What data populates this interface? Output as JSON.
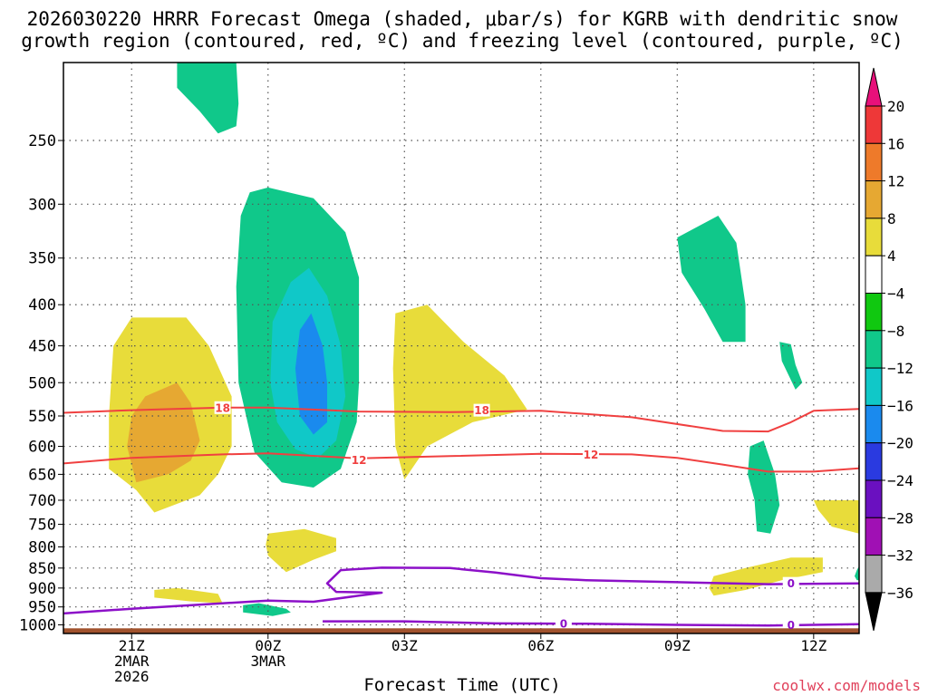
{
  "chart_data": {
    "type": "contour",
    "title_line1": "2026030220 HRRR Forecast Omega (shaded, μbar/s) for KGRB with dendritic snow",
    "title_line2": "growth region (contoured, red, ºC) and freezing level (contoured, purple, ºC)",
    "xlabel": "Forecast Time (UTC)",
    "credit": "coolwx.com/models",
    "x_hours_range": [
      -1.5,
      16.0
    ],
    "x_ticks": [
      {
        "h": 0,
        "lines": [
          "21Z",
          "2MAR",
          "2026"
        ]
      },
      {
        "h": 3,
        "lines": [
          "00Z",
          "3MAR"
        ]
      },
      {
        "h": 6,
        "lines": [
          "03Z"
        ]
      },
      {
        "h": 9,
        "lines": [
          "06Z"
        ]
      },
      {
        "h": 12,
        "lines": [
          "09Z"
        ]
      },
      {
        "h": 15,
        "lines": [
          "12Z"
        ]
      }
    ],
    "y_ticks_mb": [
      250,
      300,
      350,
      400,
      450,
      500,
      550,
      600,
      650,
      700,
      750,
      800,
      850,
      900,
      950,
      1000
    ],
    "y_axis": "log-pressure, 200 mb at top to 1025 mb at bottom",
    "colorbar": {
      "labels": [
        "20",
        "16",
        "12",
        "8",
        "4",
        "−4",
        "−8",
        "−12",
        "−16",
        "−20",
        "−24",
        "−28",
        "−32",
        "−36"
      ],
      "bands": [
        {
          "from": 20,
          "to": 99,
          "color": "#e8107a"
        },
        {
          "from": 16,
          "to": 20,
          "color": "#ee3838"
        },
        {
          "from": 12,
          "to": 16,
          "color": "#ee7a2a"
        },
        {
          "from": 8,
          "to": 12,
          "color": "#e6a832"
        },
        {
          "from": 4,
          "to": 8,
          "color": "#e8dc3a"
        },
        {
          "from": -4,
          "to": 4,
          "color": "#ffffff"
        },
        {
          "from": -8,
          "to": -4,
          "color": "#10c810"
        },
        {
          "from": -12,
          "to": -8,
          "color": "#10c88a"
        },
        {
          "from": -16,
          "to": -12,
          "color": "#10c8c8"
        },
        {
          "from": -20,
          "to": -16,
          "color": "#1a8aee"
        },
        {
          "from": -24,
          "to": -20,
          "color": "#2a3ae0"
        },
        {
          "from": -28,
          "to": -24,
          "color": "#6a10c0"
        },
        {
          "from": -32,
          "to": -28,
          "color": "#a010b4"
        },
        {
          "from": -36,
          "to": -32,
          "color": "#aaaaaa"
        },
        {
          "from": -99,
          "to": -36,
          "color": "#000000"
        }
      ]
    },
    "omega_regions": [
      {
        "name": "lift-upper-0",
        "level": -8,
        "pts": [
          [
            1.0,
            200
          ],
          [
            2.3,
            200
          ],
          [
            2.35,
            225
          ],
          [
            2.3,
            240
          ],
          [
            1.9,
            245
          ],
          [
            1.5,
            230
          ],
          [
            1.0,
            215
          ]
        ]
      },
      {
        "name": "lift-main-outer",
        "level": -8,
        "pts": [
          [
            2.6,
            290
          ],
          [
            3.0,
            286
          ],
          [
            4.0,
            295
          ],
          [
            4.7,
            325
          ],
          [
            5.0,
            370
          ],
          [
            5.0,
            500
          ],
          [
            4.95,
            560
          ],
          [
            4.6,
            640
          ],
          [
            4.0,
            675
          ],
          [
            3.3,
            665
          ],
          [
            2.7,
            610
          ],
          [
            2.35,
            500
          ],
          [
            2.3,
            380
          ],
          [
            2.4,
            310
          ]
        ]
      },
      {
        "name": "lift-main-mid",
        "level": -12,
        "pts": [
          [
            3.9,
            360
          ],
          [
            4.3,
            390
          ],
          [
            4.6,
            450
          ],
          [
            4.7,
            520
          ],
          [
            4.5,
            590
          ],
          [
            4.1,
            620
          ],
          [
            3.6,
            605
          ],
          [
            3.2,
            560
          ],
          [
            3.05,
            500
          ],
          [
            3.1,
            420
          ],
          [
            3.5,
            375
          ]
        ]
      },
      {
        "name": "lift-main-core",
        "level": -16,
        "pts": [
          [
            3.95,
            410
          ],
          [
            4.2,
            450
          ],
          [
            4.3,
            500
          ],
          [
            4.3,
            560
          ],
          [
            4.0,
            580
          ],
          [
            3.7,
            550
          ],
          [
            3.6,
            480
          ],
          [
            3.7,
            430
          ]
        ]
      },
      {
        "name": "lift-0930z",
        "level": -8,
        "pts": [
          [
            12.0,
            330
          ],
          [
            12.9,
            310
          ],
          [
            13.3,
            335
          ],
          [
            13.5,
            400
          ],
          [
            13.5,
            445
          ],
          [
            13.0,
            445
          ],
          [
            12.6,
            405
          ],
          [
            12.1,
            365
          ]
        ]
      },
      {
        "name": "lift-1100z",
        "level": -8,
        "pts": [
          [
            14.25,
            445
          ],
          [
            14.5,
            448
          ],
          [
            14.6,
            475
          ],
          [
            14.75,
            500
          ],
          [
            14.6,
            510
          ],
          [
            14.3,
            470
          ]
        ]
      },
      {
        "name": "lift-1000z",
        "level": -8,
        "pts": [
          [
            13.6,
            600
          ],
          [
            13.9,
            590
          ],
          [
            14.15,
            650
          ],
          [
            14.25,
            710
          ],
          [
            14.05,
            770
          ],
          [
            13.75,
            765
          ],
          [
            13.7,
            700
          ],
          [
            13.55,
            650
          ]
        ]
      },
      {
        "name": "lift-0230z",
        "level": -8,
        "pts": [
          [
            2.45,
            945
          ],
          [
            2.8,
            940
          ],
          [
            3.4,
            955
          ],
          [
            3.5,
            965
          ],
          [
            3.1,
            975
          ],
          [
            2.45,
            965
          ]
        ]
      },
      {
        "name": "lift-edge",
        "level": -8,
        "pts": [
          [
            15.95,
            855
          ],
          [
            16.0,
            845
          ],
          [
            16.0,
            880
          ],
          [
            15.95,
            880
          ],
          [
            15.9,
            870
          ]
        ]
      },
      {
        "name": "sink-left-outer",
        "level": 4,
        "pts": [
          [
            0.0,
            415
          ],
          [
            1.2,
            415
          ],
          [
            1.7,
            450
          ],
          [
            2.2,
            520
          ],
          [
            2.2,
            600
          ],
          [
            1.9,
            650
          ],
          [
            1.5,
            690
          ],
          [
            0.5,
            725
          ],
          [
            0.1,
            680
          ],
          [
            -0.5,
            640
          ],
          [
            -0.5,
            550
          ],
          [
            -0.4,
            450
          ]
        ]
      },
      {
        "name": "sink-left-inner",
        "level": 8,
        "pts": [
          [
            0.3,
            520
          ],
          [
            1.0,
            500
          ],
          [
            1.3,
            530
          ],
          [
            1.5,
            590
          ],
          [
            1.3,
            625
          ],
          [
            0.8,
            650
          ],
          [
            0.1,
            665
          ],
          [
            -0.1,
            600
          ],
          [
            0.0,
            550
          ]
        ]
      },
      {
        "name": "sink-mid",
        "level": 4,
        "pts": [
          [
            5.8,
            410
          ],
          [
            6.5,
            400
          ],
          [
            7.3,
            445
          ],
          [
            8.2,
            490
          ],
          [
            8.7,
            540
          ],
          [
            7.5,
            560
          ],
          [
            6.5,
            600
          ],
          [
            6.0,
            660
          ],
          [
            5.8,
            600
          ],
          [
            5.75,
            480
          ]
        ]
      },
      {
        "name": "sink-0030z",
        "level": 4,
        "pts": [
          [
            3.0,
            770
          ],
          [
            3.8,
            760
          ],
          [
            4.5,
            780
          ],
          [
            4.5,
            810
          ],
          [
            4.0,
            830
          ],
          [
            3.4,
            860
          ],
          [
            3.0,
            820
          ],
          [
            2.95,
            795
          ]
        ]
      },
      {
        "name": "sink-2200z",
        "level": 4,
        "pts": [
          [
            0.5,
            905
          ],
          [
            1.0,
            900
          ],
          [
            1.9,
            915
          ],
          [
            2.0,
            940
          ],
          [
            1.3,
            935
          ],
          [
            0.5,
            925
          ]
        ]
      },
      {
        "name": "sink-1030z",
        "level": 4,
        "pts": [
          [
            12.8,
            870
          ],
          [
            13.5,
            850
          ],
          [
            14.5,
            825
          ],
          [
            15.2,
            825
          ],
          [
            15.2,
            860
          ],
          [
            14.3,
            880
          ],
          [
            13.5,
            905
          ],
          [
            12.8,
            920
          ],
          [
            12.7,
            900
          ]
        ]
      },
      {
        "name": "sink-1330z",
        "level": 4,
        "pts": [
          [
            15.0,
            700
          ],
          [
            16.0,
            700
          ],
          [
            16.0,
            770
          ],
          [
            15.4,
            755
          ],
          [
            15.1,
            720
          ]
        ]
      }
    ],
    "dgz_lines": [
      {
        "label": "18",
        "color": "#f04040",
        "pts": [
          [
            -1.5,
            545
          ],
          [
            0,
            541
          ],
          [
            2,
            537
          ],
          [
            3,
            537
          ],
          [
            5,
            543
          ],
          [
            7,
            544
          ],
          [
            9,
            542
          ],
          [
            11,
            552
          ],
          [
            13,
            574
          ],
          [
            14,
            575
          ],
          [
            14.5,
            560
          ],
          [
            15,
            542
          ],
          [
            16,
            539
          ]
        ],
        "label_at": [
          [
            2.0,
            537
          ],
          [
            7.7,
            541
          ]
        ]
      },
      {
        "label": "12",
        "color": "#f04040",
        "pts": [
          [
            -1.5,
            630
          ],
          [
            0,
            620
          ],
          [
            2,
            614
          ],
          [
            3,
            612
          ],
          [
            5,
            621
          ],
          [
            7,
            617
          ],
          [
            9,
            613
          ],
          [
            11,
            614
          ],
          [
            12,
            620
          ],
          [
            13,
            632
          ],
          [
            14,
            645
          ],
          [
            15,
            645
          ],
          [
            16,
            639
          ],
          [
            16,
            633
          ]
        ],
        "label_at": [
          [
            5.0,
            624
          ],
          [
            10.1,
            614
          ]
        ]
      }
    ],
    "freezing_lines": [
      {
        "label": "0",
        "color": "#8c10c8",
        "pts": [
          [
            -1.5,
            968
          ],
          [
            0,
            955
          ],
          [
            3,
            933
          ],
          [
            4,
            936
          ],
          [
            5,
            920
          ],
          [
            5.5,
            912
          ],
          [
            4.5,
            910
          ],
          [
            4.3,
            888
          ],
          [
            4.6,
            855
          ],
          [
            5.5,
            849
          ],
          [
            7,
            850
          ],
          [
            8,
            861
          ],
          [
            9,
            875
          ],
          [
            10,
            880
          ],
          [
            12,
            885
          ],
          [
            14,
            890
          ],
          [
            16,
            888
          ]
        ],
        "label_at": [
          [
            14.5,
            888
          ]
        ]
      },
      {
        "label": "0",
        "color": "#8c10c8",
        "pts": [
          [
            4.2,
            990
          ],
          [
            6,
            990
          ],
          [
            8,
            996
          ],
          [
            10,
            997
          ],
          [
            12,
            1000
          ],
          [
            14,
            1002
          ],
          [
            16,
            998
          ]
        ],
        "label_at": [
          [
            9.5,
            996
          ],
          [
            14.5,
            1000
          ]
        ]
      }
    ],
    "terrain_top_mb": 1010
  }
}
